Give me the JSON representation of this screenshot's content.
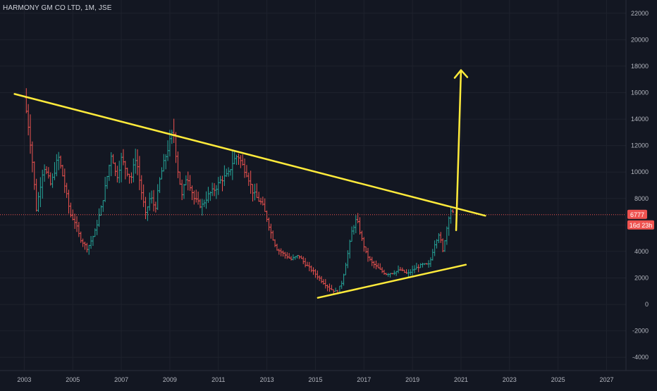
{
  "title": "HARMONY GM CO LTD, 1M, JSE",
  "price_tag": "6777",
  "countdown_tag": "16d 23h",
  "colors": {
    "background": "#131722",
    "up": "#26a69a",
    "down": "#ef5350",
    "trendline": "#ffeb3b",
    "price_line": "#ef5350",
    "axis_text": "#b2b5be"
  },
  "chart_data": {
    "type": "candlestick",
    "symbol": "HARMONY GM CO LTD",
    "interval": "1M",
    "exchange": "JSE",
    "current_price": 6777,
    "y_axis_ticks": [
      22000,
      20000,
      18000,
      16000,
      14000,
      12000,
      10000,
      8000,
      6000,
      4000,
      2000,
      0,
      -2000,
      -4000
    ],
    "x_axis_ticks": [
      "2003",
      "2005",
      "2007",
      "2009",
      "2011",
      "2013",
      "2015",
      "2017",
      "2019",
      "2021",
      "2023",
      "2025",
      "2027"
    ],
    "ylim": [
      -5000,
      23000
    ],
    "xlim": [
      2002.0,
      2027.8
    ],
    "price_path": [
      [
        2003.0,
        15600
      ],
      [
        2003.15,
        13800
      ],
      [
        2003.3,
        11500
      ],
      [
        2003.5,
        7200
      ],
      [
        2003.8,
        10500
      ],
      [
        2004.1,
        9000
      ],
      [
        2004.4,
        11200
      ],
      [
        2004.6,
        9600
      ],
      [
        2004.9,
        6800
      ],
      [
        2005.1,
        6200
      ],
      [
        2005.3,
        5000
      ],
      [
        2005.6,
        4200
      ],
      [
        2005.9,
        5400
      ],
      [
        2006.2,
        7500
      ],
      [
        2006.4,
        9500
      ],
      [
        2006.6,
        11500
      ],
      [
        2006.8,
        9500
      ],
      [
        2007.0,
        11000
      ],
      [
        2007.2,
        10200
      ],
      [
        2007.4,
        9500
      ],
      [
        2007.6,
        11200
      ],
      [
        2007.8,
        8800
      ],
      [
        2008.0,
        6800
      ],
      [
        2008.2,
        8200
      ],
      [
        2008.4,
        7200
      ],
      [
        2008.6,
        9600
      ],
      [
        2008.8,
        11000
      ],
      [
        2009.0,
        12300
      ],
      [
        2009.15,
        13200
      ],
      [
        2009.3,
        10500
      ],
      [
        2009.5,
        8200
      ],
      [
        2009.7,
        9800
      ],
      [
        2010.0,
        8000
      ],
      [
        2010.3,
        7400
      ],
      [
        2010.6,
        8300
      ],
      [
        2010.9,
        8800
      ],
      [
        2011.1,
        9400
      ],
      [
        2011.4,
        9800
      ],
      [
        2011.6,
        10800
      ],
      [
        2011.8,
        11300
      ],
      [
        2012.0,
        10500
      ],
      [
        2012.2,
        9800
      ],
      [
        2012.4,
        8600
      ],
      [
        2012.6,
        8000
      ],
      [
        2012.8,
        7600
      ],
      [
        2013.0,
        6500
      ],
      [
        2013.2,
        5200
      ],
      [
        2013.4,
        4200
      ],
      [
        2013.7,
        3800
      ],
      [
        2014.0,
        3400
      ],
      [
        2014.3,
        3700
      ],
      [
        2014.6,
        3000
      ],
      [
        2014.9,
        2500
      ],
      [
        2015.1,
        2100
      ],
      [
        2015.3,
        1700
      ],
      [
        2015.6,
        1200
      ],
      [
        2015.9,
        900
      ],
      [
        2016.1,
        1700
      ],
      [
        2016.3,
        3500
      ],
      [
        2016.5,
        5500
      ],
      [
        2016.7,
        6500
      ],
      [
        2016.9,
        5000
      ],
      [
        2017.1,
        3800
      ],
      [
        2017.3,
        3200
      ],
      [
        2017.6,
        2700
      ],
      [
        2017.9,
        2300
      ],
      [
        2018.2,
        2400
      ],
      [
        2018.5,
        2600
      ],
      [
        2018.8,
        2300
      ],
      [
        2019.1,
        2700
      ],
      [
        2019.4,
        3000
      ],
      [
        2019.7,
        3000
      ],
      [
        2019.9,
        4500
      ],
      [
        2020.1,
        5400
      ],
      [
        2020.25,
        4000
      ],
      [
        2020.4,
        5600
      ],
      [
        2020.55,
        7200
      ],
      [
        2020.7,
        6777
      ]
    ]
  },
  "annotations": {
    "resistance_line": [
      [
        2002.6,
        15900
      ],
      [
        2022.0,
        6700
      ]
    ],
    "support_line": [
      [
        2015.1,
        500
      ],
      [
        2021.2,
        3000
      ]
    ],
    "arrow": [
      [
        2020.8,
        5600
      ],
      [
        2021.0,
        17700
      ]
    ]
  }
}
